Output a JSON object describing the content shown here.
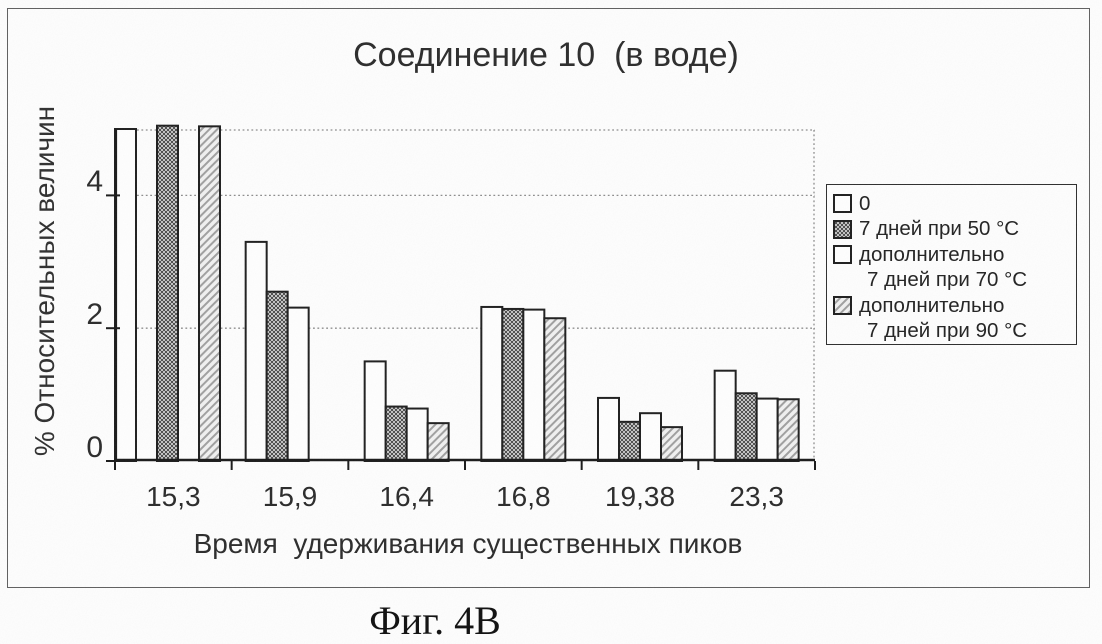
{
  "figure": {
    "caption": "Фиг. 4B"
  },
  "colors": {
    "ink": "#1f1f1f",
    "axis": "#1a1a1a",
    "grid_dots": "#8d8d8d",
    "bar_white_fill": "#fefefe",
    "stipple_dark": "#4f4f4f",
    "stipple_light": "#c2c2c2",
    "hatch_line": "#a0a0a0",
    "hatch_bg": "#f0f0f0"
  },
  "chart_data": {
    "type": "bar",
    "title": "Соединение 10  (в воде)",
    "xlabel": "Время  удерживания существенных пиков",
    "ylabel": "% Относительных величин",
    "ylim": [
      0,
      5
    ],
    "yticks": [
      "0",
      "2",
      "4"
    ],
    "ytick_values": [
      0,
      2,
      4
    ],
    "grid": "dotted horizontal gridlines at 2 and 4; dotted plot top and right borders",
    "legend_position": "right of plot",
    "categories": [
      "15,3",
      "15,9",
      "16,4",
      "16,8",
      "19,38",
      "23,3"
    ],
    "series": [
      {
        "name": "0",
        "style": "white",
        "values": [
          5,
          3.3,
          1.5,
          2.32,
          0.95,
          1.36
        ]
      },
      {
        "name": "7 дней при 50 °C",
        "style": "stipple",
        "values": [
          5,
          2.55,
          0.82,
          2.29,
          0.59,
          1.02
        ]
      },
      {
        "name": "дополнительно 7 дней при 70 °C",
        "style": "white",
        "values": [
          null,
          2.31,
          0.79,
          2.28,
          0.72,
          0.94
        ]
      },
      {
        "name": "дополнительно 7 дней при 90 °C",
        "style": "hatch",
        "values": [
          5,
          null,
          0.57,
          2.15,
          0.51,
          0.93
        ]
      }
    ],
    "clipping_note": "в группе 15,3 столбцы достигают верхней границы оси (значения ≥ 5) и обрезаны",
    "render_groups": [
      {
        "label": "15,3",
        "lead": 0,
        "bars": [
          {
            "series": 0,
            "value": 5.0
          },
          {
            "series": null
          },
          {
            "series": 1,
            "value": 5.05
          },
          {
            "series": null
          },
          {
            "series": 3,
            "value": 5.04
          }
        ]
      },
      {
        "label": "15,9",
        "lead": 14,
        "bars": [
          {
            "series": 0,
            "value": 3.3
          },
          {
            "series": 1,
            "value": 2.55
          },
          {
            "series": 2,
            "value": 2.31
          }
        ]
      },
      {
        "label": "16,4",
        "bars": [
          {
            "series": 0,
            "value": 1.5
          },
          {
            "series": 1,
            "value": 0.82
          },
          {
            "series": 2,
            "value": 0.79
          },
          {
            "series": 3,
            "value": 0.57
          }
        ]
      },
      {
        "label": "16,8",
        "bars": [
          {
            "series": 0,
            "value": 2.32
          },
          {
            "series": 1,
            "value": 2.29
          },
          {
            "series": 2,
            "value": 2.28
          },
          {
            "series": 3,
            "value": 2.15
          }
        ]
      },
      {
        "label": "19,38",
        "bars": [
          {
            "series": 0,
            "value": 0.95
          },
          {
            "series": 1,
            "value": 0.59
          },
          {
            "series": 2,
            "value": 0.72
          },
          {
            "series": 3,
            "value": 0.51
          }
        ]
      },
      {
        "label": "23,3",
        "bars": [
          {
            "series": 0,
            "value": 1.36
          },
          {
            "series": 1,
            "value": 1.02
          },
          {
            "series": 2,
            "value": 0.94
          },
          {
            "series": 3,
            "value": 0.93
          }
        ]
      }
    ]
  },
  "legend": {
    "items": [
      {
        "swatch": "white",
        "lines": [
          "0"
        ]
      },
      {
        "swatch": "stipple",
        "lines": [
          "7 дней при 50 °C"
        ]
      },
      {
        "swatch": "white",
        "lines": [
          "дополнительно",
          "7 дней при 70 °C"
        ]
      },
      {
        "swatch": "hatch",
        "lines": [
          "дополнительно",
          "7 дней при 90 °C"
        ]
      }
    ]
  }
}
